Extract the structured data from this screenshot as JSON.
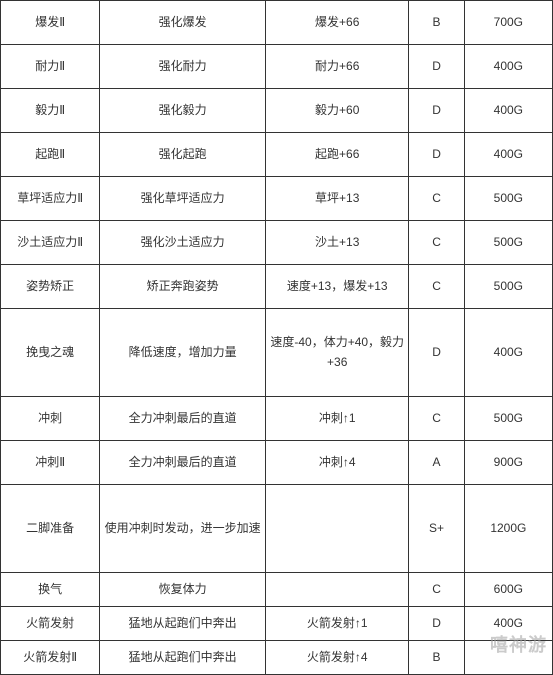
{
  "table": {
    "columns": [
      {
        "key": "name",
        "width": "18%"
      },
      {
        "key": "description",
        "width": "30%"
      },
      {
        "key": "effect",
        "width": "26%"
      },
      {
        "key": "grade",
        "width": "10%"
      },
      {
        "key": "cost",
        "width": "16%"
      }
    ],
    "rows": [
      {
        "name": "爆发Ⅱ",
        "description": "强化爆发",
        "effect": "爆发+66",
        "grade": "B",
        "cost": "700G"
      },
      {
        "name": "耐力Ⅱ",
        "description": "强化耐力",
        "effect": "耐力+66",
        "grade": "D",
        "cost": "400G"
      },
      {
        "name": "毅力Ⅱ",
        "description": "强化毅力",
        "effect": "毅力+60",
        "grade": "D",
        "cost": "400G"
      },
      {
        "name": "起跑Ⅱ",
        "description": "强化起跑",
        "effect": "起跑+66",
        "grade": "D",
        "cost": "400G"
      },
      {
        "name": "草坪适应力Ⅱ",
        "description": "强化草坪适应力",
        "effect": "草坪+13",
        "grade": "C",
        "cost": "500G"
      },
      {
        "name": "沙土适应力Ⅱ",
        "description": "强化沙土适应力",
        "effect": "沙土+13",
        "grade": "C",
        "cost": "500G"
      },
      {
        "name": "姿势矫正",
        "description": "矫正奔跑姿势",
        "effect": "速度+13，爆发+13",
        "grade": "C",
        "cost": "500G"
      },
      {
        "name": "挽曳之魂",
        "description": "降低速度，增加力量",
        "effect": "速度-40，体力+40，毅力+36",
        "grade": "D",
        "cost": "400G",
        "multiline": true
      },
      {
        "name": "冲刺",
        "description": "全力冲刺最后的直道",
        "effect": "冲刺↑1",
        "grade": "C",
        "cost": "500G"
      },
      {
        "name": "冲刺Ⅱ",
        "description": "全力冲刺最后的直道",
        "effect": "冲刺↑4",
        "grade": "A",
        "cost": "900G"
      },
      {
        "name": "二脚准备",
        "description": "使用冲刺时发动，进一步加速",
        "effect": "",
        "grade": "S+",
        "cost": "1200G",
        "multiline": true
      },
      {
        "name": "换气",
        "description": "恢复体力",
        "effect": "",
        "grade": "C",
        "cost": "600G",
        "short": true
      },
      {
        "name": "火箭发射",
        "description": "猛地从起跑们中奔出",
        "effect": "火箭发射↑1",
        "grade": "D",
        "cost": "400G",
        "short": true
      },
      {
        "name": "火箭发射Ⅱ",
        "description": "猛地从起跑们中奔出",
        "effect": "火箭发射↑4",
        "grade": "B",
        "cost": "",
        "short": true
      }
    ],
    "border_color": "#333333",
    "text_color": "#333333",
    "font_size": 12,
    "background_color": "#ffffff"
  },
  "watermark": {
    "text": "嘻神游",
    "color": "rgba(160,160,160,0.55)"
  }
}
